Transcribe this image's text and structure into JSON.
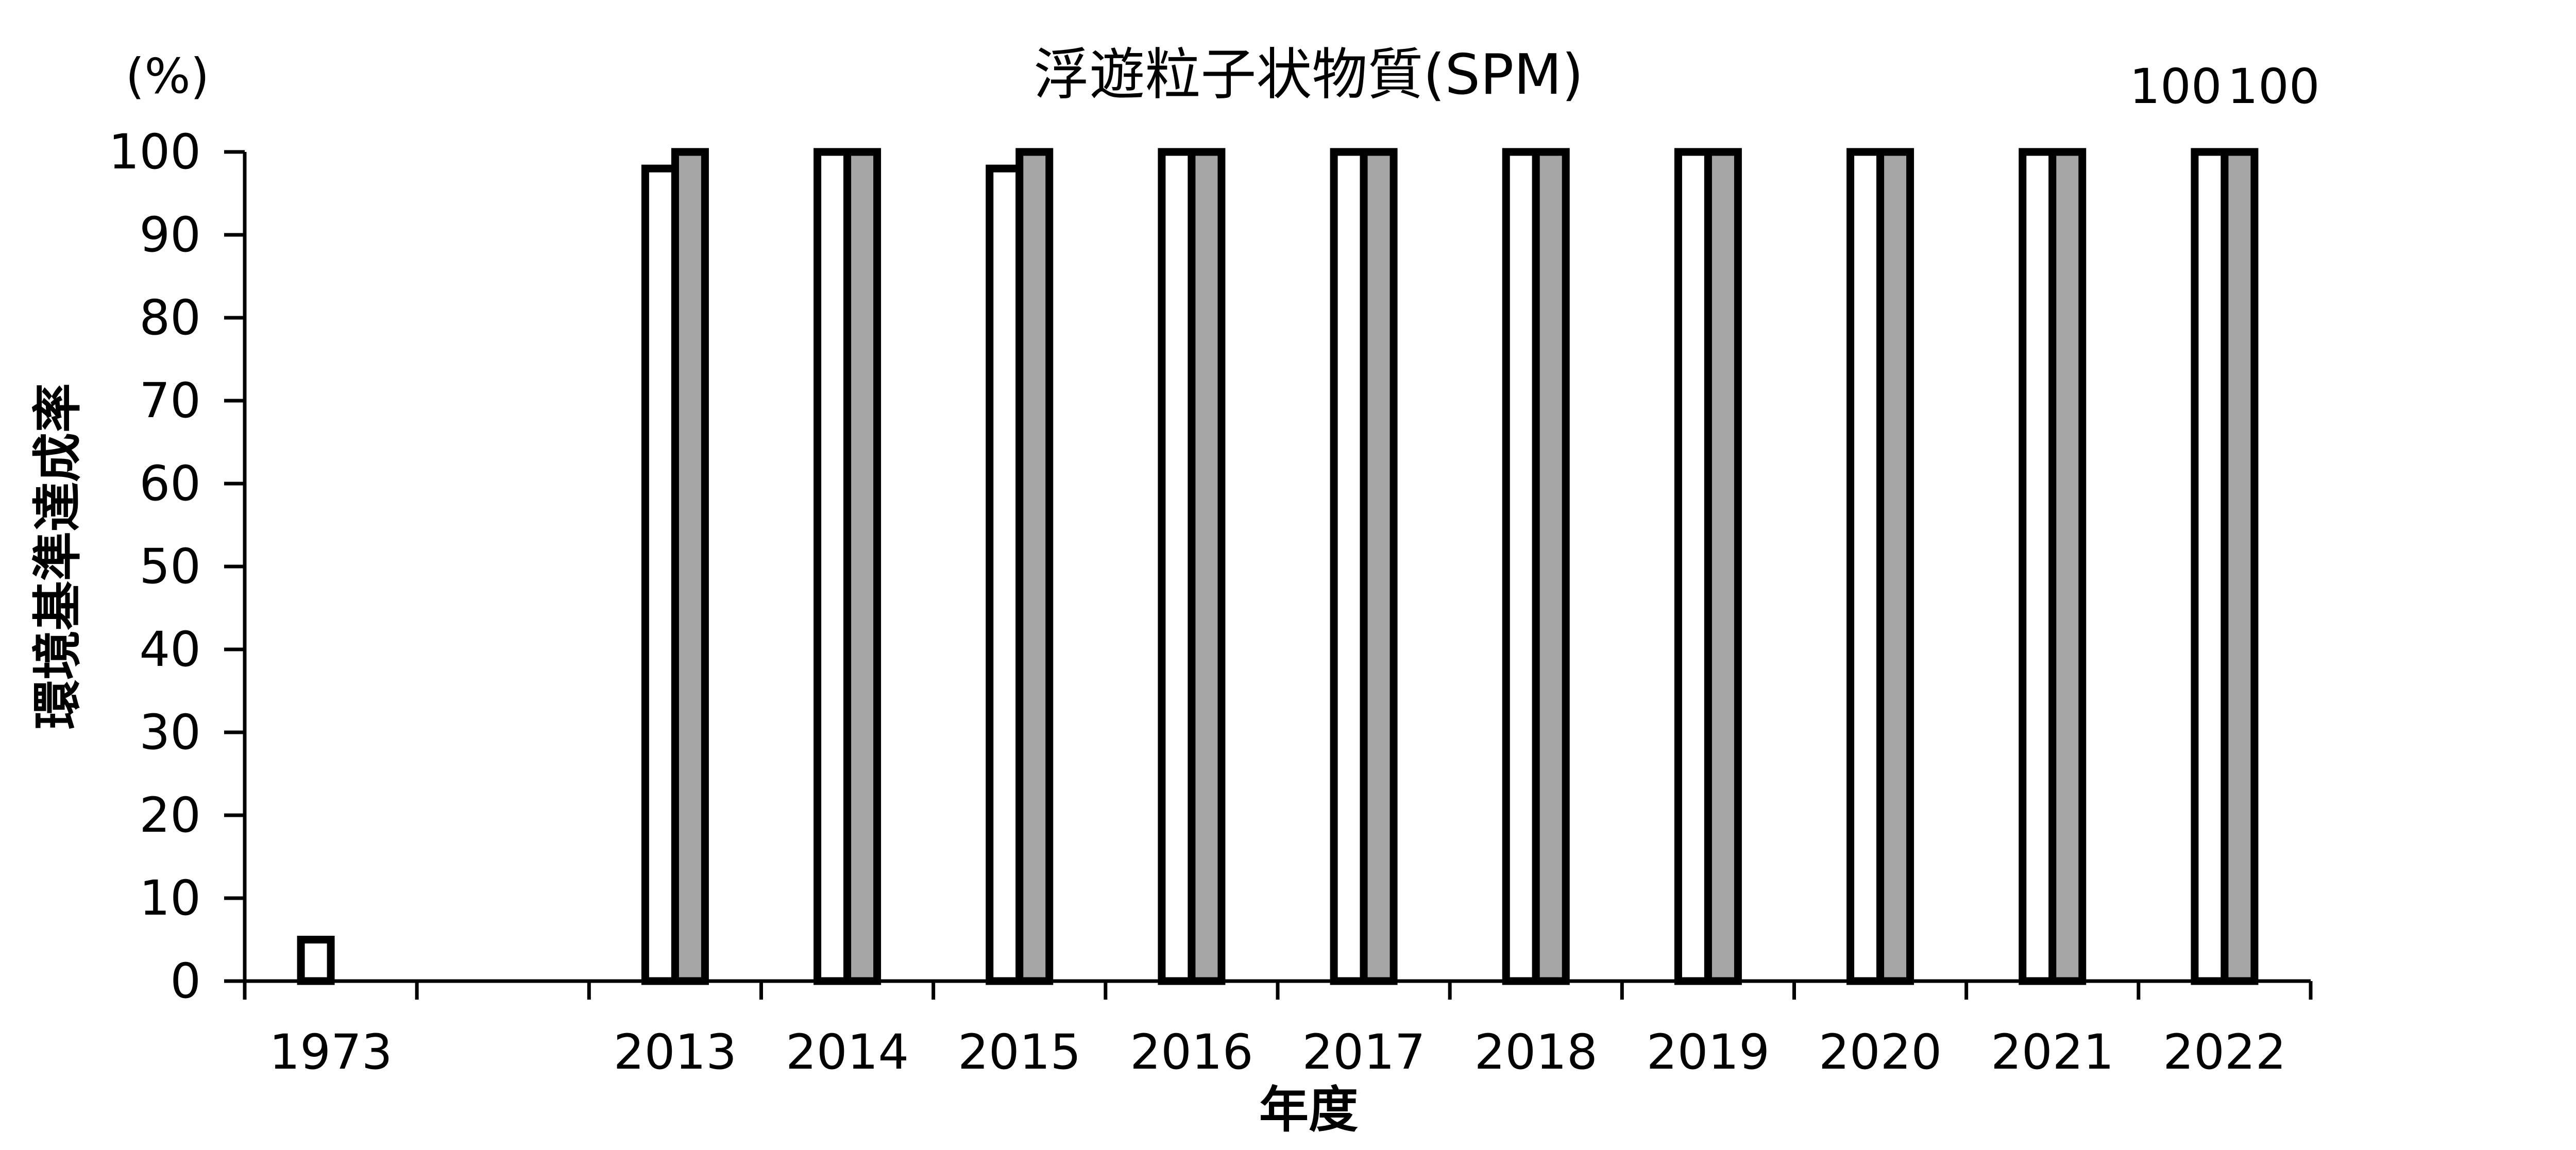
{
  "chart_data": {
    "type": "bar",
    "title": "浮遊粒子状物質(SPM)",
    "unit_label": "(%)",
    "ylabel": "環境基準達成率",
    "xlabel": "年度",
    "categories": [
      "1973",
      "",
      "2013",
      "2014",
      "2015",
      "2016",
      "2017",
      "2018",
      "2019",
      "2020",
      "2021",
      "2022"
    ],
    "series": [
      {
        "fill": "#ffffff",
        "values": [
          5,
          null,
          98,
          100,
          98,
          100,
          100,
          100,
          100,
          100,
          100,
          100
        ]
      },
      {
        "fill": "#a6a6a6",
        "values": [
          null,
          null,
          100,
          100,
          100,
          100,
          100,
          100,
          100,
          100,
          100,
          100
        ]
      }
    ],
    "data_labels": [
      {
        "category": "2022",
        "series": 0,
        "text": "100"
      },
      {
        "category": "2022",
        "series": 1,
        "text": "100"
      }
    ],
    "ylim": [
      0,
      100
    ],
    "yticks": [
      "0",
      "10",
      "20",
      "30",
      "40",
      "50",
      "60",
      "70",
      "80",
      "90",
      "100"
    ],
    "grid": false,
    "legend": "none",
    "colors": {
      "axis": "#000000",
      "bar_border": "#000000"
    }
  }
}
